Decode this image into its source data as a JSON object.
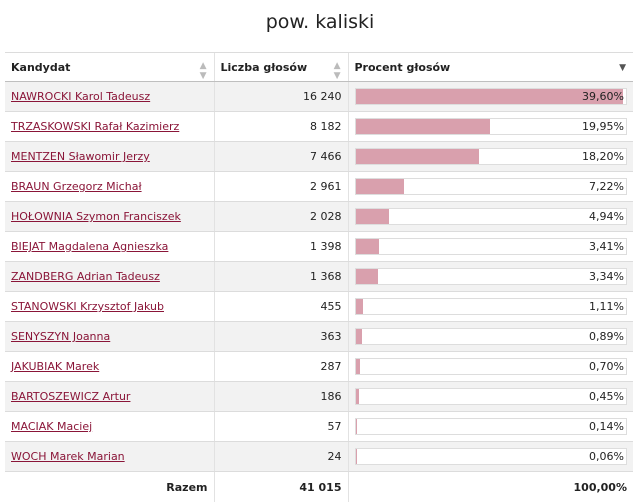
{
  "title": "pow. kaliski",
  "table": {
    "headers": {
      "candidate": "Kandydat",
      "votes": "Liczba głosów",
      "percent": "Procent głosów"
    },
    "sort_icons": {
      "candidate": "sort-both-icon",
      "votes": "sort-both-icon",
      "percent": "sort-descending-icon"
    },
    "rows": [
      {
        "name": "NAWROCKI Karol Tadeusz",
        "votes": "16 240",
        "percent": "39,60%",
        "share": 39.6
      },
      {
        "name": "TRZASKOWSKI Rafał Kazimierz",
        "votes": "8 182",
        "percent": "19,95%",
        "share": 19.95
      },
      {
        "name": "MENTZEN Sławomir Jerzy",
        "votes": "7 466",
        "percent": "18,20%",
        "share": 18.2
      },
      {
        "name": "BRAUN Grzegorz Michał",
        "votes": "2 961",
        "percent": "7,22%",
        "share": 7.22
      },
      {
        "name": "HOŁOWNIA Szymon Franciszek",
        "votes": "2 028",
        "percent": "4,94%",
        "share": 4.94
      },
      {
        "name": "BIEJAT Magdalena Agnieszka",
        "votes": "1 398",
        "percent": "3,41%",
        "share": 3.41
      },
      {
        "name": "ZANDBERG Adrian Tadeusz",
        "votes": "1 368",
        "percent": "3,34%",
        "share": 3.34
      },
      {
        "name": "STANOWSKI Krzysztof Jakub",
        "votes": "455",
        "percent": "1,11%",
        "share": 1.11
      },
      {
        "name": "SENYSZYN Joanna",
        "votes": "363",
        "percent": "0,89%",
        "share": 0.89
      },
      {
        "name": "JAKUBIAK Marek",
        "votes": "287",
        "percent": "0,70%",
        "share": 0.7
      },
      {
        "name": "BARTOSZEWICZ Artur",
        "votes": "186",
        "percent": "0,45%",
        "share": 0.45
      },
      {
        "name": "MACIAK Maciej",
        "votes": "57",
        "percent": "0,14%",
        "share": 0.14
      },
      {
        "name": "WOCH Marek Marian",
        "votes": "24",
        "percent": "0,06%",
        "share": 0.06
      }
    ],
    "footer": {
      "label": "Razem",
      "votes": "41 015",
      "percent": "100,00%"
    }
  },
  "colors": {
    "bar": "#d9a0ad",
    "link": "#8a1538"
  }
}
